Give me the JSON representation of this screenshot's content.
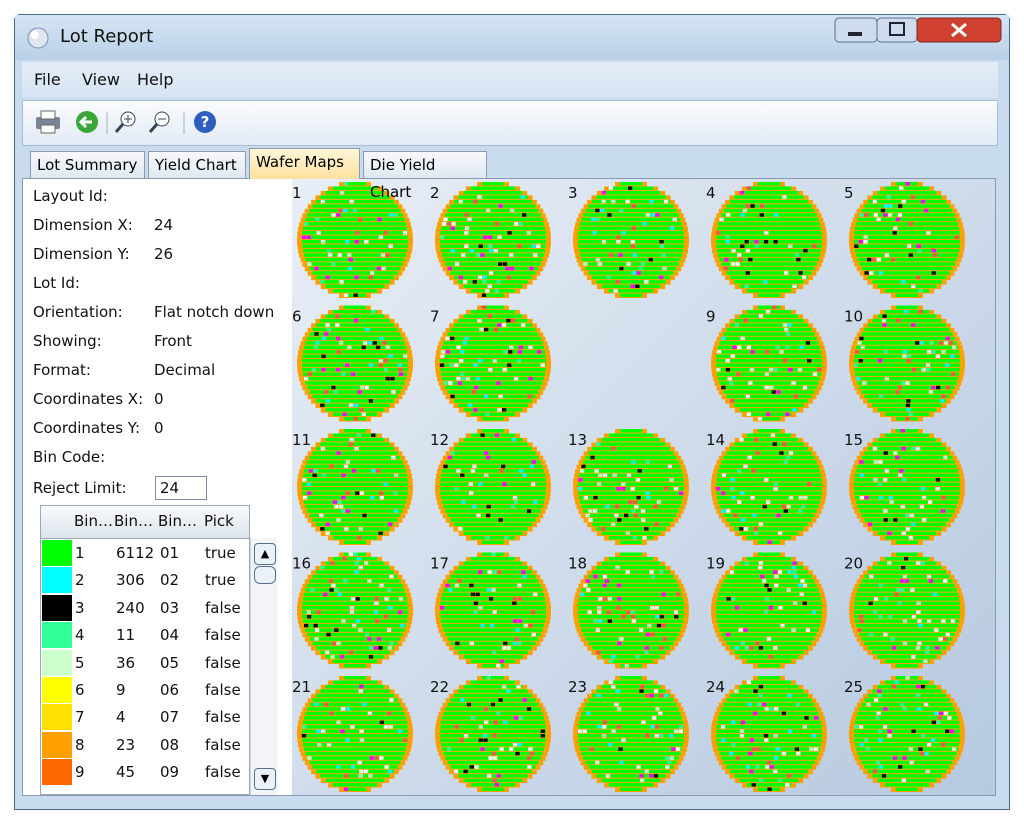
{
  "window": {
    "title": "Lot Report"
  },
  "menu": [
    "File",
    "View",
    "Help"
  ],
  "tabs": {
    "items": [
      "Lot Summary",
      "Yield Chart",
      "Wafer Maps",
      "Die Yield Chart"
    ],
    "active": 2
  },
  "properties": [
    {
      "label": "Layout Id:"
    },
    {
      "label": "Dimension X:",
      "value": 24
    },
    {
      "label": "Dimension Y:",
      "value": 26
    },
    {
      "label": "Lot Id:"
    },
    {
      "label": "Orientation:",
      "value": "Flat notch down"
    },
    {
      "label": "Showing:",
      "value": "Front"
    },
    {
      "label": "Format:",
      "value": "Decimal"
    },
    {
      "label": "Coordinates X:",
      "value": 0
    },
    {
      "label": "Coordinates Y:",
      "value": 0
    },
    {
      "label": "Bin Code:"
    }
  ],
  "reject_limit": {
    "label": "Reject Limit:",
    "value": 24
  },
  "bin_table": {
    "columns": [
      "Bin…",
      "Bin…",
      "Bin…",
      "Pick"
    ],
    "rows": [
      {
        "color": "#00ff00",
        "bin": 1,
        "count": 6112,
        "code": "01",
        "pick": "true"
      },
      {
        "color": "#00ffff",
        "bin": 2,
        "count": 306,
        "code": "02",
        "pick": "true"
      },
      {
        "color": "#000000",
        "bin": 3,
        "count": 240,
        "code": "03",
        "pick": "false"
      },
      {
        "color": "#33ff99",
        "bin": 4,
        "count": 11,
        "code": "04",
        "pick": "false"
      },
      {
        "color": "#ccffcc",
        "bin": 5,
        "count": 36,
        "code": "05",
        "pick": "false"
      },
      {
        "color": "#ffff00",
        "bin": 6,
        "count": 9,
        "code": "06",
        "pick": "false"
      },
      {
        "color": "#ffe000",
        "bin": 7,
        "count": 4,
        "code": "07",
        "pick": "false"
      },
      {
        "color": "#ffa000",
        "bin": 8,
        "count": 23,
        "code": "08",
        "pick": "false"
      },
      {
        "color": "#ff6a00",
        "bin": 9,
        "count": 45,
        "code": "09",
        "pick": "false"
      }
    ]
  },
  "wafers": [
    1,
    2,
    3,
    4,
    5,
    6,
    7,
    null,
    9,
    10,
    11,
    12,
    13,
    14,
    15,
    16,
    17,
    18,
    19,
    20,
    21,
    22,
    23,
    24,
    25
  ]
}
